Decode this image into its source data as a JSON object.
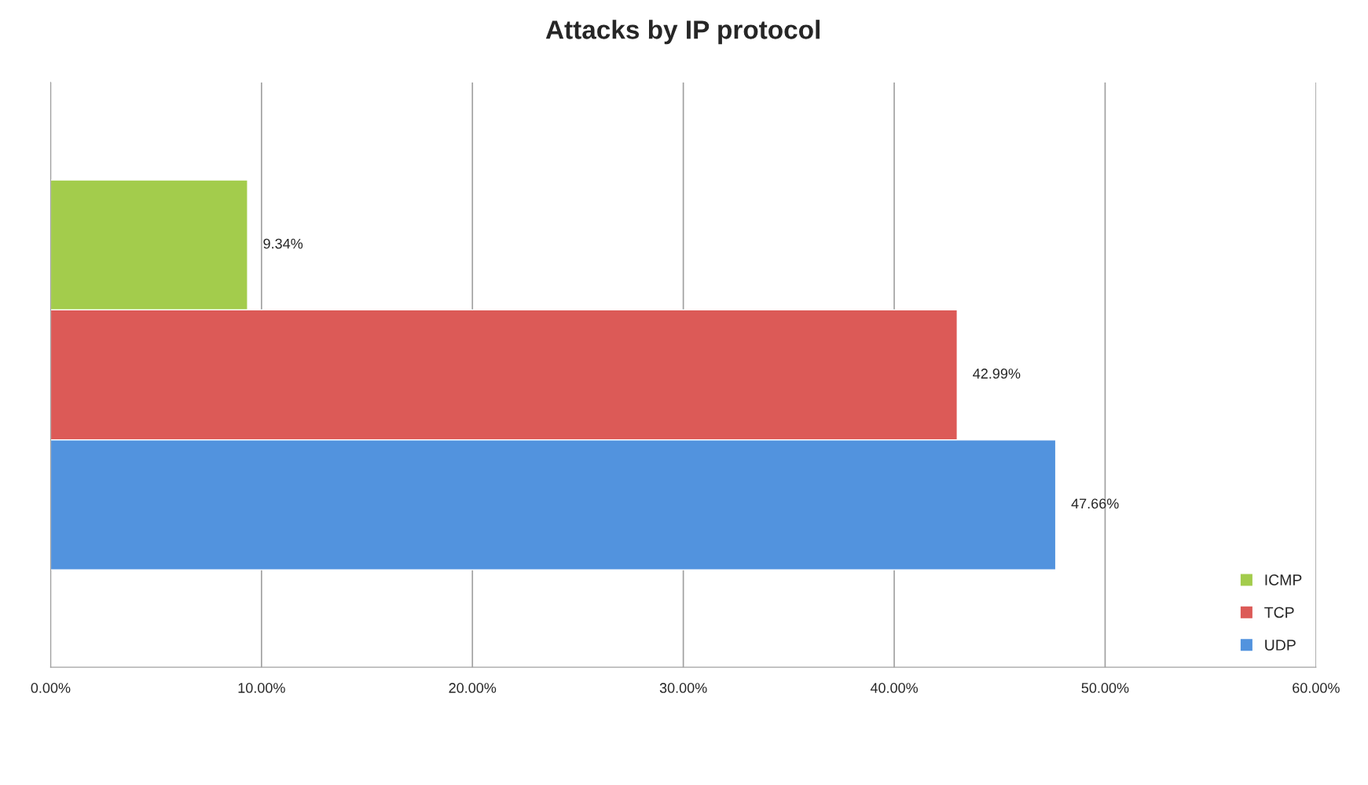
{
  "chart_data": {
    "type": "bar",
    "orientation": "horizontal",
    "title": "Attacks by IP protocol",
    "categories": [
      null
    ],
    "series": [
      {
        "name": "ICMP",
        "color": "#a3cc4c",
        "values": [
          9.34
        ],
        "value_labels": [
          "9.34%"
        ]
      },
      {
        "name": "TCP",
        "color": "#dc5a57",
        "values": [
          42.99
        ],
        "value_labels": [
          "42.99%"
        ]
      },
      {
        "name": "UDP",
        "color": "#5293de",
        "values": [
          47.66
        ],
        "value_labels": [
          "47.66%"
        ]
      }
    ],
    "xlim": [
      0,
      60
    ],
    "xticks": [
      {
        "value": 0,
        "label": "0.00%"
      },
      {
        "value": 10,
        "label": "10.00%"
      },
      {
        "value": 20,
        "label": "20.00%"
      },
      {
        "value": 30,
        "label": "30.00%"
      },
      {
        "value": 40,
        "label": "40.00%"
      },
      {
        "value": 50,
        "label": "50.00%"
      },
      {
        "value": 60,
        "label": "60.00%"
      }
    ],
    "grid": "x",
    "legend": "bottom right",
    "tick_labels": "x"
  }
}
